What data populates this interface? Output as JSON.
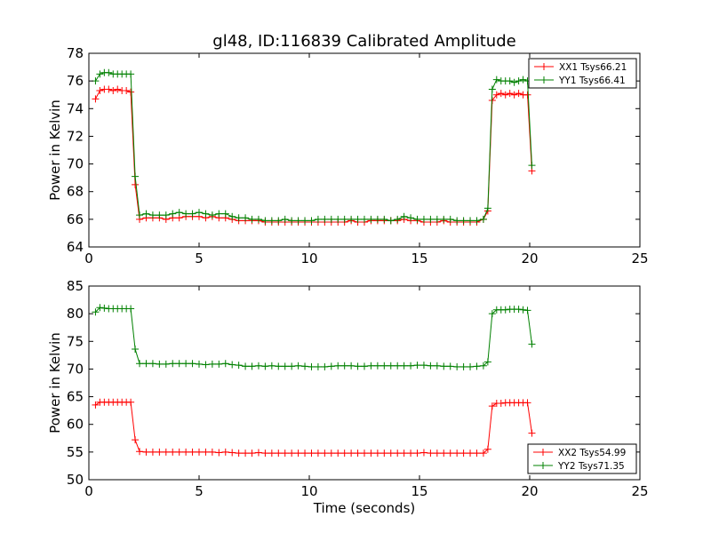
{
  "figure": {
    "title": "gl48, ID:116839 Calibrated Amplitude",
    "xlabel": "Time (seconds)"
  },
  "chart_data": [
    {
      "type": "line",
      "title": "gl48, ID:116839 Calibrated Amplitude",
      "xlabel": "",
      "ylabel": "Power in Kelvin",
      "xlim": [
        0,
        25
      ],
      "ylim": [
        64,
        78
      ],
      "xticks": [
        0,
        5,
        10,
        15,
        20,
        25
      ],
      "yticks": [
        64,
        66,
        68,
        70,
        72,
        74,
        76,
        78
      ],
      "grid": false,
      "legend_position": "top-right",
      "series": [
        {
          "name": "XX1 Tsys66.21",
          "color": "#ff0000",
          "x": [
            0.3,
            0.5,
            0.7,
            0.9,
            1.1,
            1.3,
            1.5,
            1.7,
            1.9,
            2.1,
            2.3,
            2.6,
            2.9,
            3.2,
            3.5,
            3.8,
            4.1,
            4.4,
            4.7,
            5.0,
            5.3,
            5.6,
            5.9,
            6.2,
            6.5,
            6.8,
            7.1,
            7.4,
            7.7,
            8.0,
            8.3,
            8.6,
            8.9,
            9.2,
            9.5,
            9.8,
            10.1,
            10.4,
            10.7,
            11.0,
            11.3,
            11.6,
            11.9,
            12.2,
            12.5,
            12.8,
            13.1,
            13.4,
            13.7,
            14.0,
            14.3,
            14.6,
            14.9,
            15.2,
            15.5,
            15.8,
            16.1,
            16.4,
            16.7,
            17.0,
            17.3,
            17.6,
            17.9,
            18.1,
            18.3,
            18.5,
            18.7,
            18.9,
            19.1,
            19.3,
            19.5,
            19.7,
            19.9,
            20.1
          ],
          "y": [
            74.7,
            75.3,
            75.4,
            75.4,
            75.3,
            75.4,
            75.3,
            75.3,
            75.2,
            68.5,
            66.0,
            66.1,
            66.1,
            66.1,
            66.0,
            66.1,
            66.1,
            66.2,
            66.2,
            66.2,
            66.1,
            66.2,
            66.1,
            66.1,
            66.0,
            65.9,
            65.9,
            65.9,
            65.9,
            65.8,
            65.8,
            65.8,
            65.8,
            65.8,
            65.8,
            65.8,
            65.8,
            65.8,
            65.8,
            65.8,
            65.8,
            65.8,
            65.9,
            65.8,
            65.8,
            65.9,
            65.9,
            65.9,
            65.9,
            65.9,
            66.0,
            65.9,
            65.9,
            65.8,
            65.8,
            65.8,
            65.9,
            65.8,
            65.8,
            65.8,
            65.8,
            65.8,
            66.0,
            66.6,
            74.6,
            75.0,
            75.1,
            75.0,
            75.1,
            75.0,
            75.1,
            75.0,
            75.0,
            69.5
          ]
        },
        {
          "name": "YY1 Tsys66.41",
          "color": "#008000",
          "x": [
            0.3,
            0.5,
            0.7,
            0.9,
            1.1,
            1.3,
            1.5,
            1.7,
            1.9,
            2.1,
            2.3,
            2.6,
            2.9,
            3.2,
            3.5,
            3.8,
            4.1,
            4.4,
            4.7,
            5.0,
            5.3,
            5.6,
            5.9,
            6.2,
            6.5,
            6.8,
            7.1,
            7.4,
            7.7,
            8.0,
            8.3,
            8.6,
            8.9,
            9.2,
            9.5,
            9.8,
            10.1,
            10.4,
            10.7,
            11.0,
            11.3,
            11.6,
            11.9,
            12.2,
            12.5,
            12.8,
            13.1,
            13.4,
            13.7,
            14.0,
            14.3,
            14.6,
            14.9,
            15.2,
            15.5,
            15.8,
            16.1,
            16.4,
            16.7,
            17.0,
            17.3,
            17.6,
            17.9,
            18.1,
            18.3,
            18.5,
            18.7,
            18.9,
            19.1,
            19.3,
            19.5,
            19.7,
            19.9,
            20.1
          ],
          "y": [
            76.0,
            76.5,
            76.6,
            76.6,
            76.5,
            76.5,
            76.5,
            76.5,
            76.5,
            69.1,
            66.3,
            66.4,
            66.3,
            66.3,
            66.3,
            66.4,
            66.5,
            66.4,
            66.4,
            66.5,
            66.4,
            66.3,
            66.4,
            66.4,
            66.2,
            66.1,
            66.1,
            66.0,
            66.0,
            65.9,
            65.9,
            65.9,
            66.0,
            65.9,
            65.9,
            65.9,
            65.9,
            66.0,
            66.0,
            66.0,
            66.0,
            66.0,
            66.0,
            66.0,
            66.0,
            66.0,
            66.0,
            66.0,
            65.9,
            66.0,
            66.2,
            66.1,
            66.0,
            66.0,
            66.0,
            66.0,
            66.0,
            66.0,
            65.9,
            65.9,
            65.9,
            65.9,
            66.0,
            66.8,
            75.4,
            76.1,
            76.0,
            76.0,
            76.0,
            75.9,
            76.0,
            76.1,
            76.0,
            69.9
          ]
        }
      ]
    },
    {
      "type": "line",
      "title": "",
      "xlabel": "Time (seconds)",
      "ylabel": "Power in Kelvin",
      "xlim": [
        0,
        25
      ],
      "ylim": [
        50,
        85
      ],
      "xticks": [
        0,
        5,
        10,
        15,
        20,
        25
      ],
      "yticks": [
        50,
        55,
        60,
        65,
        70,
        75,
        80,
        85
      ],
      "grid": false,
      "legend_position": "bottom-right",
      "series": [
        {
          "name": "XX2 Tsys54.99",
          "color": "#ff0000",
          "x": [
            0.3,
            0.5,
            0.7,
            0.9,
            1.1,
            1.3,
            1.5,
            1.7,
            1.9,
            2.1,
            2.3,
            2.6,
            2.9,
            3.2,
            3.5,
            3.8,
            4.1,
            4.4,
            4.7,
            5.0,
            5.3,
            5.6,
            5.9,
            6.2,
            6.5,
            6.8,
            7.1,
            7.4,
            7.7,
            8.0,
            8.3,
            8.6,
            8.9,
            9.2,
            9.5,
            9.8,
            10.1,
            10.4,
            10.7,
            11.0,
            11.3,
            11.6,
            11.9,
            12.2,
            12.5,
            12.8,
            13.1,
            13.4,
            13.7,
            14.0,
            14.3,
            14.6,
            14.9,
            15.2,
            15.5,
            15.8,
            16.1,
            16.4,
            16.7,
            17.0,
            17.3,
            17.6,
            17.9,
            18.1,
            18.3,
            18.5,
            18.7,
            18.9,
            19.1,
            19.3,
            19.5,
            19.7,
            19.9,
            20.1
          ],
          "y": [
            63.5,
            64.0,
            64.0,
            64.0,
            64.0,
            64.0,
            64.0,
            64.0,
            64.0,
            57.2,
            55.1,
            55.0,
            55.0,
            55.0,
            55.0,
            55.0,
            55.0,
            55.0,
            55.0,
            55.0,
            55.0,
            55.0,
            54.9,
            55.0,
            54.9,
            54.8,
            54.8,
            54.8,
            54.9,
            54.8,
            54.8,
            54.8,
            54.8,
            54.8,
            54.8,
            54.8,
            54.8,
            54.8,
            54.8,
            54.8,
            54.8,
            54.8,
            54.8,
            54.8,
            54.8,
            54.8,
            54.8,
            54.8,
            54.8,
            54.8,
            54.8,
            54.8,
            54.8,
            54.9,
            54.8,
            54.8,
            54.8,
            54.8,
            54.8,
            54.8,
            54.8,
            54.8,
            54.8,
            55.5,
            63.3,
            63.8,
            63.8,
            63.9,
            63.9,
            63.9,
            63.9,
            63.9,
            63.9,
            58.4
          ]
        },
        {
          "name": "YY2 Tsys71.35",
          "color": "#008000",
          "x": [
            0.3,
            0.5,
            0.7,
            0.9,
            1.1,
            1.3,
            1.5,
            1.7,
            1.9,
            2.1,
            2.3,
            2.6,
            2.9,
            3.2,
            3.5,
            3.8,
            4.1,
            4.4,
            4.7,
            5.0,
            5.3,
            5.6,
            5.9,
            6.2,
            6.5,
            6.8,
            7.1,
            7.4,
            7.7,
            8.0,
            8.3,
            8.6,
            8.9,
            9.2,
            9.5,
            9.8,
            10.1,
            10.4,
            10.7,
            11.0,
            11.3,
            11.6,
            11.9,
            12.2,
            12.5,
            12.8,
            13.1,
            13.4,
            13.7,
            14.0,
            14.3,
            14.6,
            14.9,
            15.2,
            15.5,
            15.8,
            16.1,
            16.4,
            16.7,
            17.0,
            17.3,
            17.6,
            17.9,
            18.1,
            18.3,
            18.5,
            18.7,
            18.9,
            19.1,
            19.3,
            19.5,
            19.7,
            19.9,
            20.1
          ],
          "y": [
            80.3,
            81.1,
            81.0,
            80.9,
            80.9,
            80.9,
            80.9,
            80.9,
            80.9,
            73.6,
            71.0,
            71.0,
            71.0,
            70.9,
            70.9,
            71.0,
            71.0,
            71.0,
            71.0,
            70.9,
            70.8,
            70.9,
            70.9,
            71.0,
            70.8,
            70.7,
            70.5,
            70.5,
            70.6,
            70.5,
            70.6,
            70.5,
            70.5,
            70.5,
            70.6,
            70.5,
            70.4,
            70.4,
            70.4,
            70.5,
            70.6,
            70.6,
            70.6,
            70.5,
            70.5,
            70.6,
            70.6,
            70.6,
            70.6,
            70.6,
            70.6,
            70.6,
            70.7,
            70.7,
            70.6,
            70.6,
            70.5,
            70.5,
            70.4,
            70.4,
            70.4,
            70.5,
            70.6,
            71.3,
            80.0,
            80.7,
            80.7,
            80.7,
            80.8,
            80.8,
            80.8,
            80.7,
            80.6,
            74.5
          ]
        }
      ]
    }
  ]
}
